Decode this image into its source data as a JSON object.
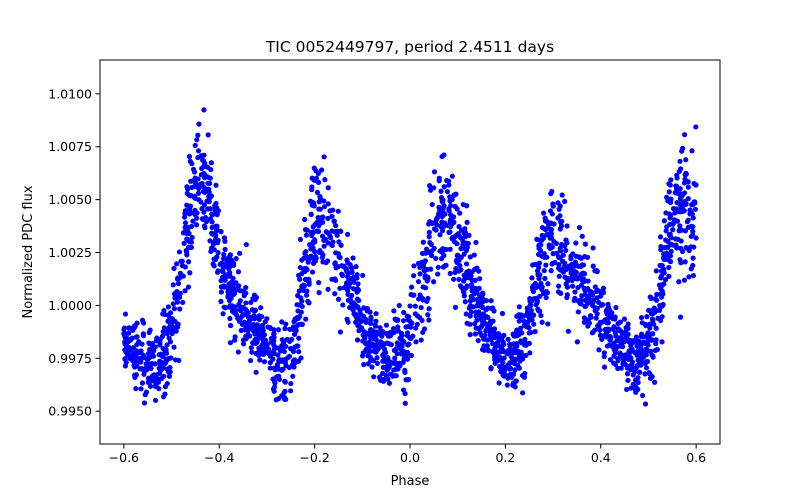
{
  "chart_data": {
    "type": "scatter",
    "title": "TIC 0052449797, period 2.4511 days",
    "xlabel": "Phase",
    "ylabel": "Normalized PDC flux",
    "xlim": [
      -0.65,
      0.65
    ],
    "ylim": [
      0.99345,
      1.0116
    ],
    "x_ticks": [
      -0.6,
      -0.4,
      -0.2,
      0.0,
      0.2,
      0.4,
      0.6
    ],
    "x_tick_labels": [
      "−0.6",
      "−0.4",
      "−0.2",
      "0.0",
      "0.2",
      "0.4",
      "0.6"
    ],
    "y_ticks": [
      0.995,
      0.9975,
      1.0,
      1.0025,
      1.005,
      1.0075,
      1.01
    ],
    "y_tick_labels": [
      "0.9950",
      "0.9975",
      "1.0000",
      "1.0025",
      "1.0050",
      "1.0075",
      "1.0100"
    ],
    "grid": false,
    "marker_color": "#0000ff",
    "marker": "circle",
    "phase_range": [
      -0.6,
      0.6
    ],
    "trend_profile": [
      [
        -0.6,
        0.9982
      ],
      [
        -0.56,
        0.9975
      ],
      [
        -0.53,
        0.9972
      ],
      [
        -0.5,
        0.9985
      ],
      [
        -0.47,
        1.003
      ],
      [
        -0.445,
        1.0065
      ],
      [
        -0.42,
        1.0045
      ],
      [
        -0.39,
        1.0015
      ],
      [
        -0.36,
        1.0002
      ],
      [
        -0.33,
        0.999
      ],
      [
        -0.3,
        0.998
      ],
      [
        -0.27,
        0.9972
      ],
      [
        -0.24,
        0.9985
      ],
      [
        -0.21,
        1.003
      ],
      [
        -0.19,
        1.0042
      ],
      [
        -0.16,
        1.003
      ],
      [
        -0.13,
        1.001
      ],
      [
        -0.1,
        0.9992
      ],
      [
        -0.07,
        0.998
      ],
      [
        -0.04,
        0.9975
      ],
      [
        0.0,
        0.9985
      ],
      [
        0.03,
        1.0015
      ],
      [
        0.06,
        1.0045
      ],
      [
        0.09,
        1.0038
      ],
      [
        0.12,
        1.0015
      ],
      [
        0.15,
        0.9995
      ],
      [
        0.18,
        0.998
      ],
      [
        0.21,
        0.9975
      ],
      [
        0.24,
        0.9985
      ],
      [
        0.27,
        1.0015
      ],
      [
        0.3,
        1.003
      ],
      [
        0.33,
        1.002
      ],
      [
        0.36,
        1.001
      ],
      [
        0.39,
        1.0
      ],
      [
        0.42,
        0.999
      ],
      [
        0.45,
        0.9978
      ],
      [
        0.48,
        0.9972
      ],
      [
        0.51,
        0.9985
      ],
      [
        0.54,
        1.003
      ],
      [
        0.56,
        1.005
      ],
      [
        0.58,
        1.0045
      ],
      [
        0.6,
        1.004
      ]
    ],
    "amplitude_profile": [
      [
        -0.6,
        0.0011
      ],
      [
        -0.5,
        0.0018
      ],
      [
        -0.44,
        0.0024
      ],
      [
        -0.38,
        0.0016
      ],
      [
        -0.3,
        0.0011
      ],
      [
        -0.2,
        0.0022
      ],
      [
        -0.12,
        0.0015
      ],
      [
        -0.05,
        0.0012
      ],
      [
        0.04,
        0.0026
      ],
      [
        0.12,
        0.0018
      ],
      [
        0.2,
        0.0012
      ],
      [
        0.28,
        0.0022
      ],
      [
        0.36,
        0.0016
      ],
      [
        0.44,
        0.0012
      ],
      [
        0.56,
        0.0026
      ],
      [
        0.6,
        0.0022
      ]
    ],
    "extremes": {
      "max": 1.0107,
      "min": 0.99345
    },
    "n_points": 2400
  }
}
